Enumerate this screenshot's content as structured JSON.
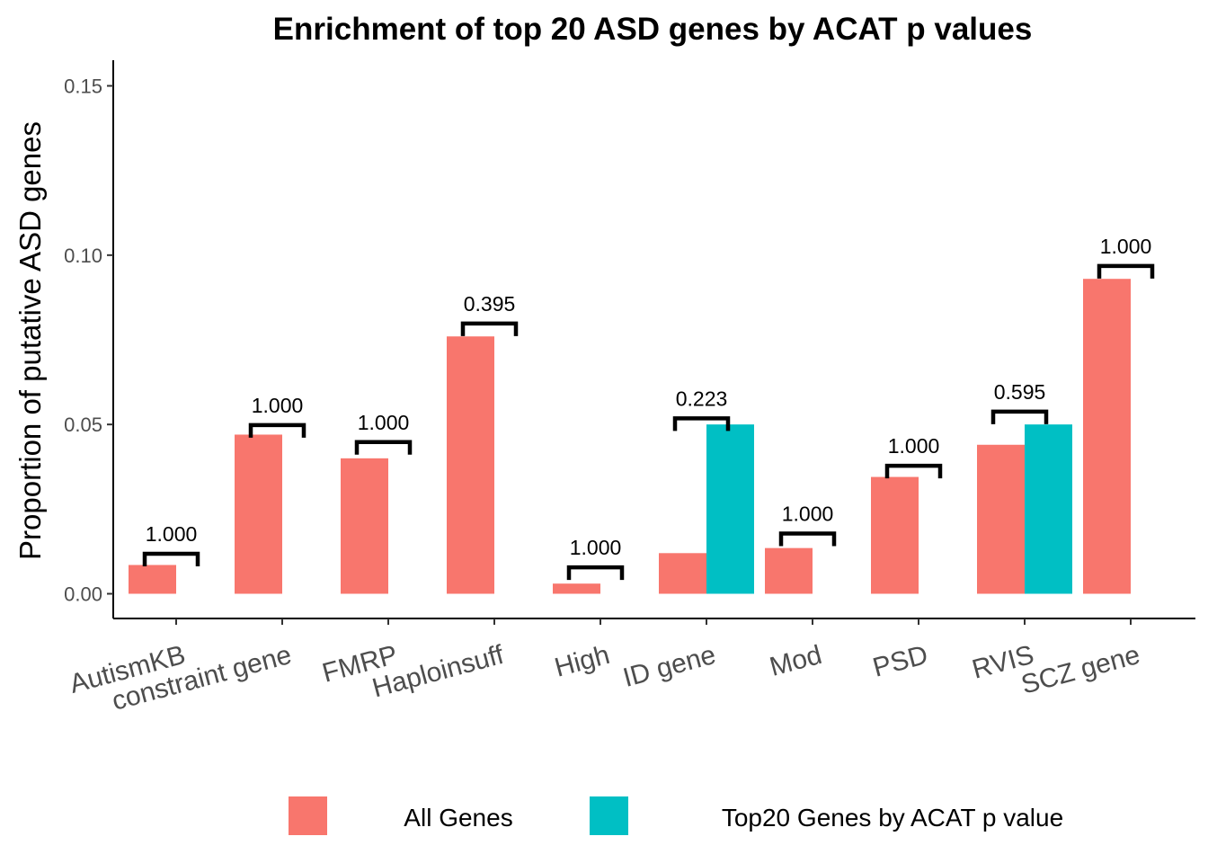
{
  "chart_data": {
    "type": "bar",
    "title": "Enrichment of top 20 ASD genes by ACAT p values",
    "xlabel": "",
    "ylabel": "Proportion of putative ASD genes",
    "ylim": [
      -0.007,
      0.158
    ],
    "yticks": [
      0.0,
      0.05,
      0.1,
      0.15
    ],
    "ytick_labels": [
      "0.00",
      "0.05",
      "0.10",
      "0.15"
    ],
    "grid": false,
    "legend_position": "bottom",
    "categories": [
      "AutismKB",
      "constraint gene",
      "FMRP",
      "Haploinsuff",
      "High",
      "ID gene",
      "Mod",
      "PSD",
      "RVIS",
      "SCZ gene"
    ],
    "series": [
      {
        "name": "All Genes",
        "color": "#F8766D",
        "values": [
          0.0085,
          0.047,
          0.04,
          0.076,
          0.003,
          0.012,
          0.0135,
          0.0345,
          0.044,
          0.093
        ]
      },
      {
        "name": "Top20 Genes by ACAT p value",
        "color": "#00BFC4",
        "values": [
          0,
          0,
          0,
          0,
          0,
          0.05,
          0,
          0,
          0.05,
          0
        ]
      }
    ],
    "p_value_labels": [
      "1.000",
      "1.000",
      "1.000",
      "0.395",
      "1.000",
      "0.223",
      "1.000",
      "1.000",
      "0.595",
      "1.000"
    ],
    "bracket_levels": [
      0.0118,
      0.0498,
      0.0448,
      0.0798,
      0.0078,
      0.0518,
      0.0178,
      0.0378,
      0.0538,
      0.0968
    ]
  }
}
